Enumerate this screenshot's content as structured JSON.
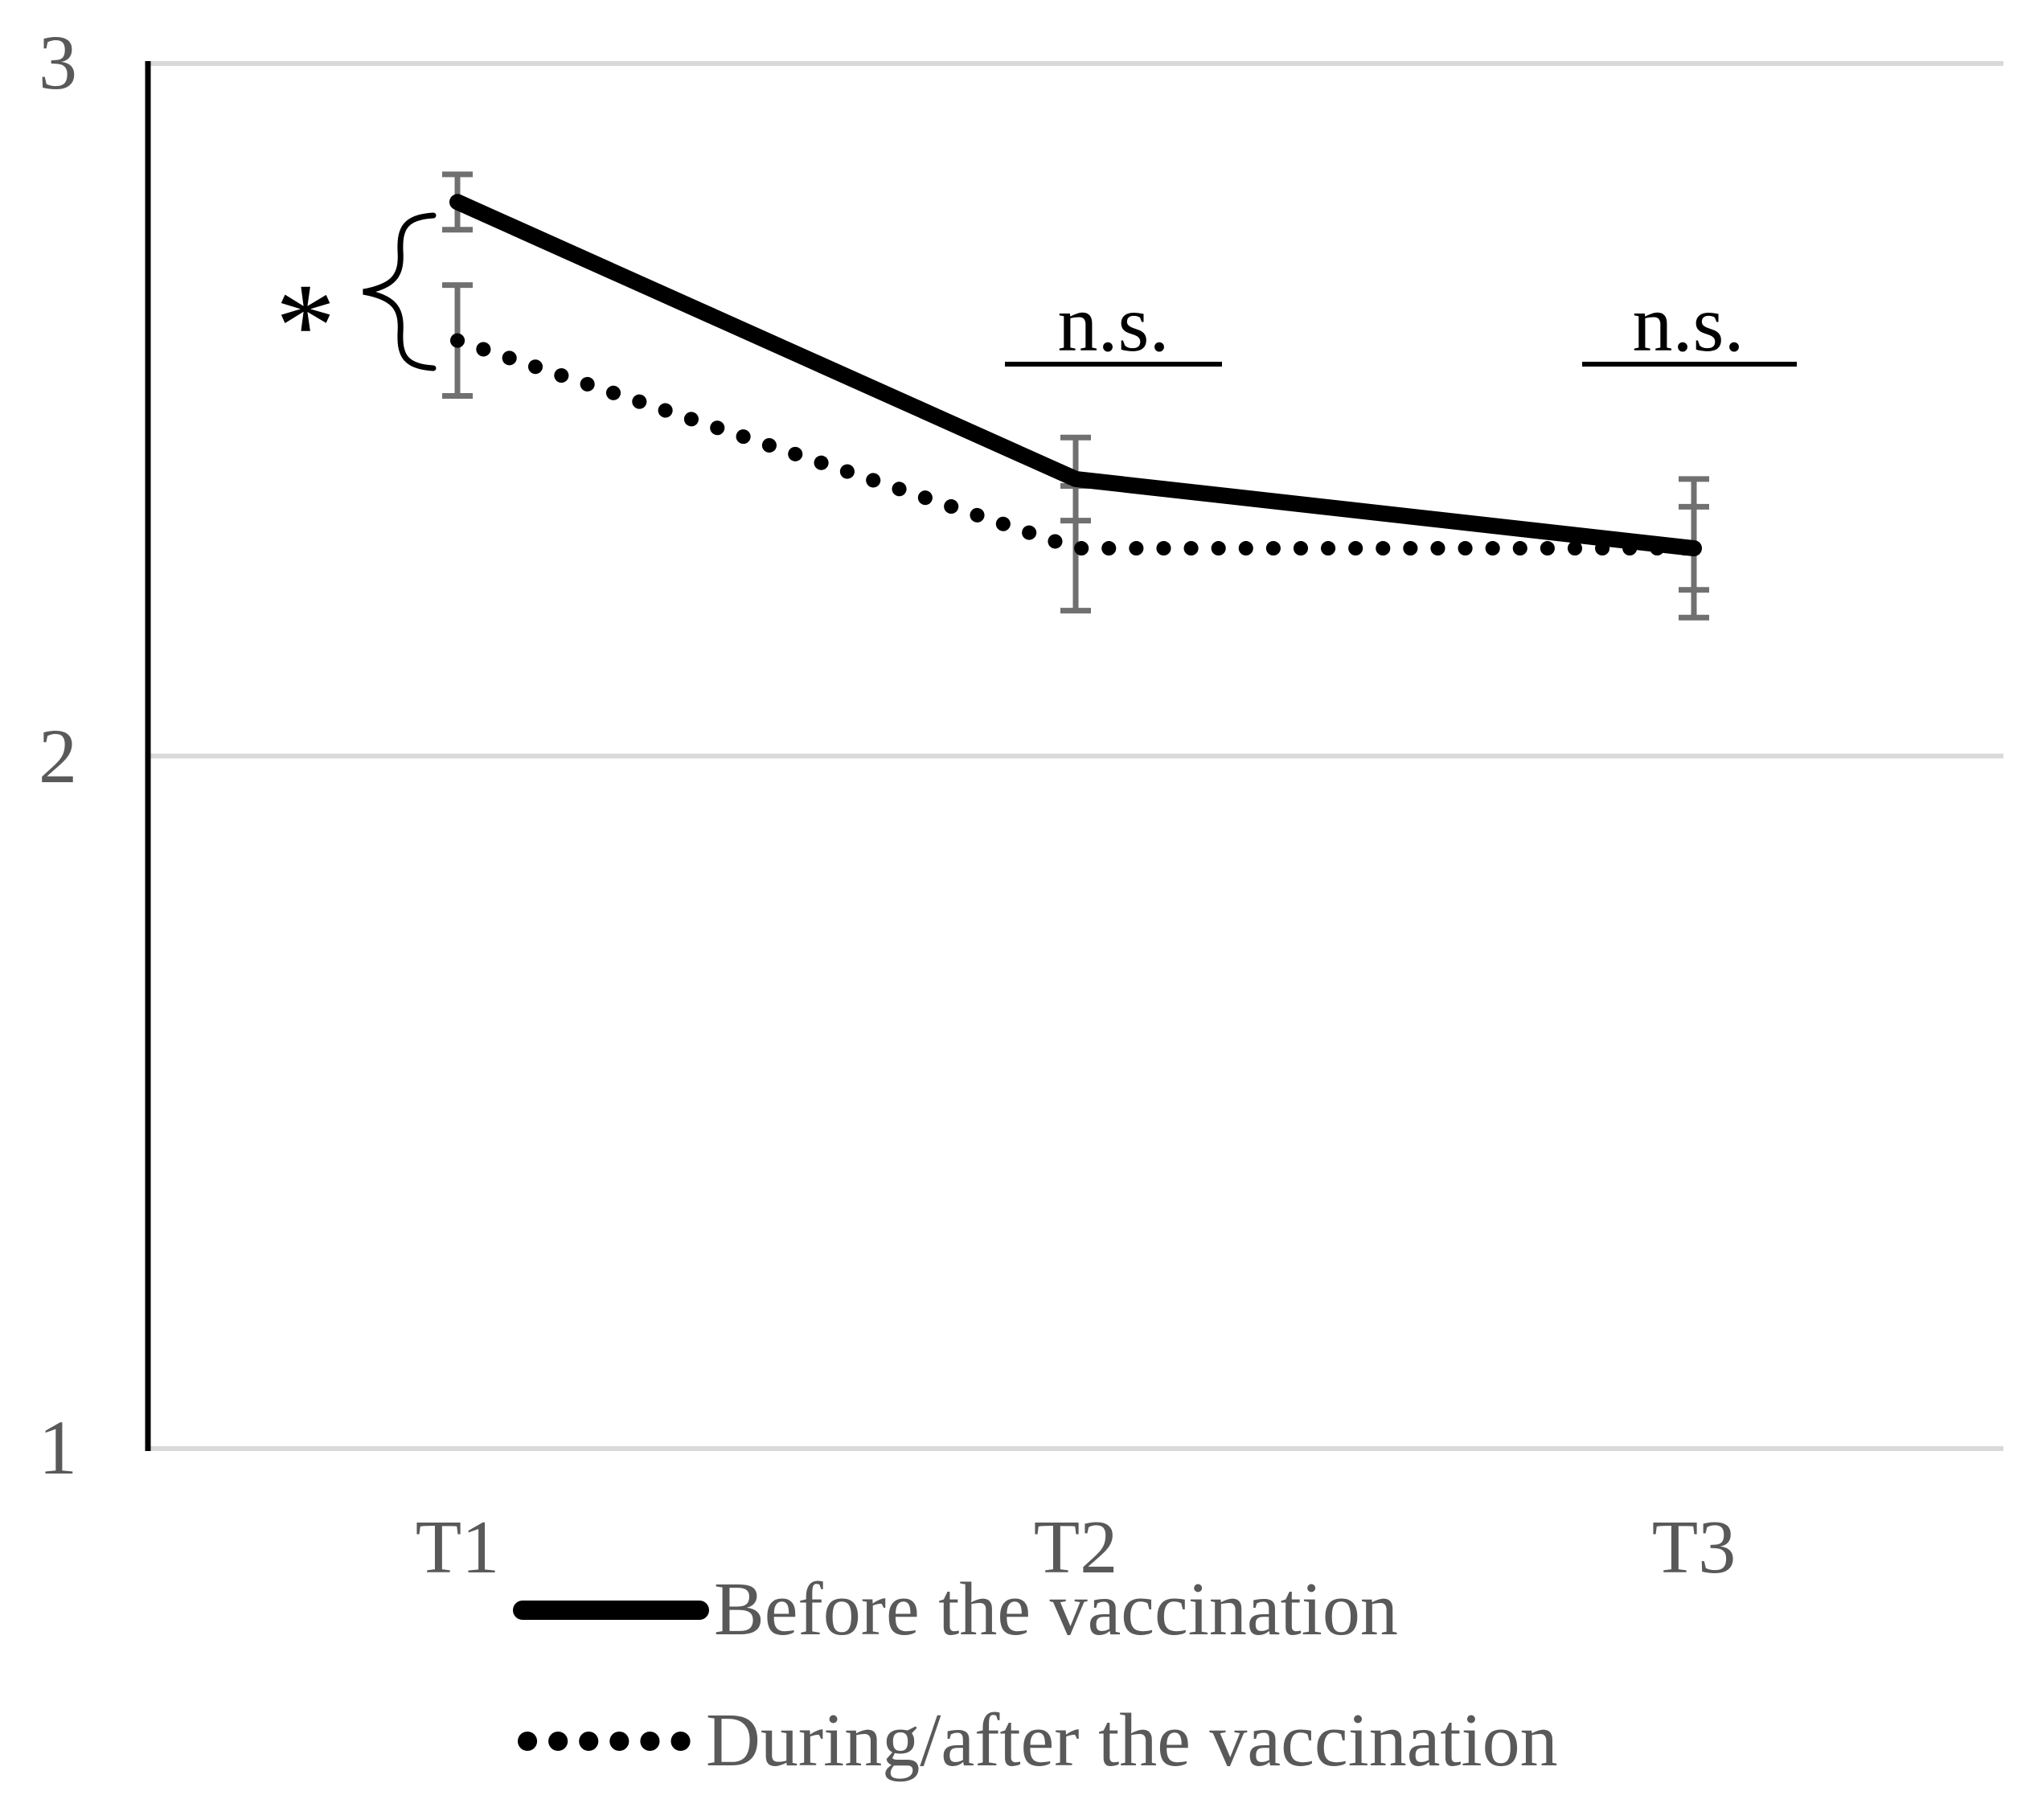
{
  "chart_data": {
    "type": "line",
    "title": "",
    "xlabel": "",
    "ylabel": "",
    "categories": [
      "T1",
      "T2",
      "T3"
    ],
    "ytick_labels": [
      "3",
      "2",
      "1"
    ],
    "ytick_values": [
      3,
      2,
      1
    ],
    "ylim": [
      1,
      3
    ],
    "grid": "horizontal",
    "legend_position": "bottom",
    "series": [
      {
        "name": "Before the vaccination",
        "style": "solid",
        "color": "#000000",
        "values": [
          2.8,
          2.4,
          2.3
        ],
        "error_bars": [
          0.04,
          0.06,
          0.06
        ]
      },
      {
        "name": "During/after the vaccination",
        "style": "dotted",
        "color": "#000000",
        "values": [
          2.6,
          2.3,
          2.3
        ],
        "error_bars": [
          0.08,
          0.09,
          0.1
        ]
      }
    ],
    "annotations": {
      "t1_significance": "*",
      "t2_significance": "n.s.",
      "t3_significance": "n.s."
    }
  },
  "colors": {
    "background": "#ffffff",
    "series_line": "#000000",
    "error_bar": "#707070",
    "gridline": "#d9d9d9",
    "axis_line": "#000000",
    "label_text": "#595959",
    "annotation_text": "#000000"
  }
}
